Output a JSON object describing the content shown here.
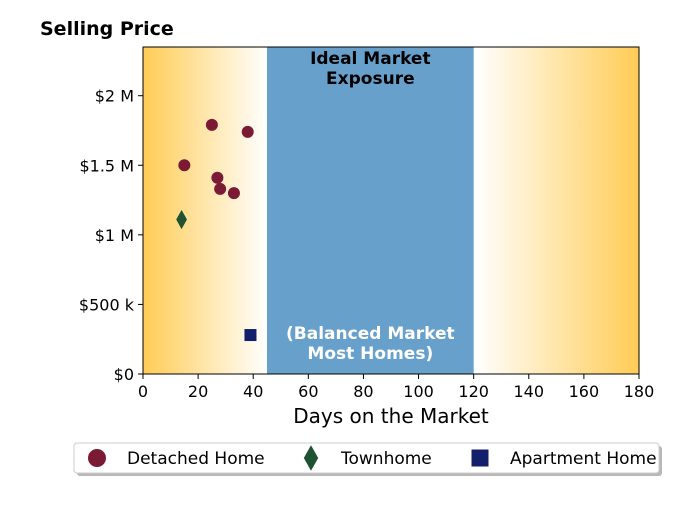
{
  "chart_data": {
    "type": "scatter",
    "title": "",
    "ylabel": "Selling Price",
    "xlabel": "Days on the Market",
    "xlim": [
      0,
      180
    ],
    "ylim": [
      0,
      2350000
    ],
    "x_ticks": [
      {
        "value": 0,
        "label": "0"
      },
      {
        "value": 20,
        "label": "20"
      },
      {
        "value": 40,
        "label": "40"
      },
      {
        "value": 60,
        "label": "60"
      },
      {
        "value": 80,
        "label": "80"
      },
      {
        "value": 100,
        "label": "100"
      },
      {
        "value": 120,
        "label": "120"
      },
      {
        "value": 140,
        "label": "140"
      },
      {
        "value": 160,
        "label": "160"
      },
      {
        "value": 180,
        "label": "180"
      }
    ],
    "y_ticks": [
      {
        "value": 0,
        "label": "$0"
      },
      {
        "value": 500000,
        "label": "$500 k"
      },
      {
        "value": 1000000,
        "label": "$1 M"
      },
      {
        "value": 1500000,
        "label": "$1.5 M"
      },
      {
        "value": 2000000,
        "label": "$2 M"
      }
    ],
    "band": {
      "x_range": [
        45,
        120
      ],
      "color": "#68a0cc",
      "title_lines": [
        "Ideal Market",
        "Exposure"
      ],
      "subtitle_lines": [
        "(Balanced Market",
        "Most Homes)"
      ]
    },
    "background_gradient": {
      "edge_color": "#ffcc55",
      "center_color": "#ffffff"
    },
    "grid": false,
    "legend_position": "bottom",
    "series": [
      {
        "name": "Detached Home",
        "marker": "circle",
        "color": "#7a1a34",
        "points": [
          {
            "x": 25,
            "y": 1790000
          },
          {
            "x": 38,
            "y": 1740000
          },
          {
            "x": 15,
            "y": 1500000
          },
          {
            "x": 27,
            "y": 1410000
          },
          {
            "x": 28,
            "y": 1330000
          },
          {
            "x": 33,
            "y": 1300000
          }
        ]
      },
      {
        "name": "Townhome",
        "marker": "diamond",
        "color": "#1e5230",
        "points": [
          {
            "x": 14,
            "y": 1110000
          }
        ]
      },
      {
        "name": "Apartment Home",
        "marker": "square",
        "color": "#141f6b",
        "points": [
          {
            "x": 39,
            "y": 280000
          }
        ]
      }
    ]
  }
}
